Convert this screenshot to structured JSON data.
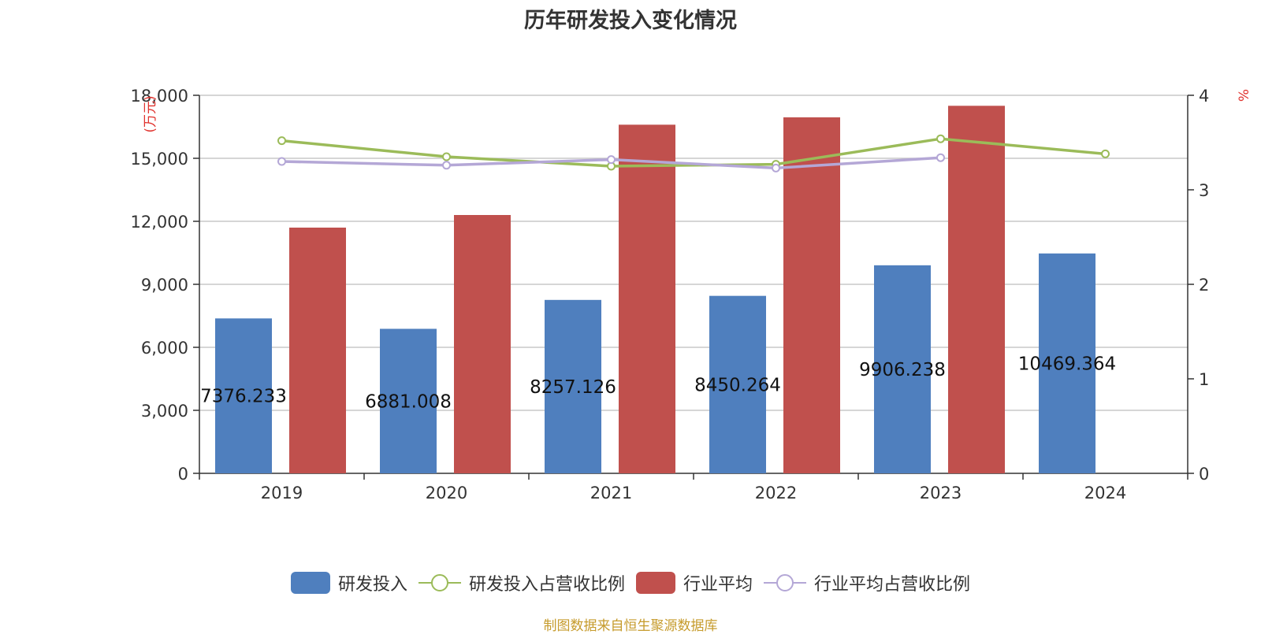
{
  "page": {
    "title": "历年研发投入变化情况",
    "source": "制图数据来自恒生聚源数据库"
  },
  "chart_data": {
    "type": "bar",
    "title": "历年研发投入变化情况",
    "categories": [
      "2019",
      "2020",
      "2021",
      "2022",
      "2023",
      "2024"
    ],
    "y_left": {
      "unit": "(万元)",
      "ylim": [
        0,
        18000
      ],
      "ticks": [
        0,
        3000,
        6000,
        9000,
        12000,
        15000,
        18000
      ],
      "tick_labels": [
        "0",
        "3,000",
        "6,000",
        "9,000",
        "12,000",
        "15,000",
        "18,000"
      ]
    },
    "y_right": {
      "unit": "%",
      "ylim": [
        0,
        4
      ],
      "ticks": [
        0,
        1,
        2,
        3,
        4
      ],
      "tick_labels": [
        "0",
        "1",
        "2",
        "3",
        "4"
      ]
    },
    "grid": true,
    "legend_position": "bottom",
    "series": [
      {
        "name": "研发投入",
        "type": "bar",
        "axis": "left",
        "color": "#4f7fbe",
        "values": [
          7376.233,
          6881.008,
          8257.126,
          8450.264,
          9906.238,
          10469.364
        ],
        "labels": [
          "7376.233",
          "6881.008",
          "8257.126",
          "8450.264",
          "9906.238",
          "10469.364"
        ]
      },
      {
        "name": "研发投入占营收比例",
        "type": "line",
        "axis": "right",
        "color": "#9bbb59",
        "values": [
          3.52,
          3.35,
          3.25,
          3.27,
          3.54,
          3.38
        ]
      },
      {
        "name": "行业平均",
        "type": "bar",
        "axis": "left",
        "color": "#c0504d",
        "values": [
          11700,
          12300,
          16600,
          16950,
          17500,
          null
        ]
      },
      {
        "name": "行业平均占营收比例",
        "type": "line",
        "axis": "right",
        "color": "#b4a7d6",
        "values": [
          3.3,
          3.26,
          3.32,
          3.23,
          3.34,
          null
        ]
      }
    ]
  }
}
